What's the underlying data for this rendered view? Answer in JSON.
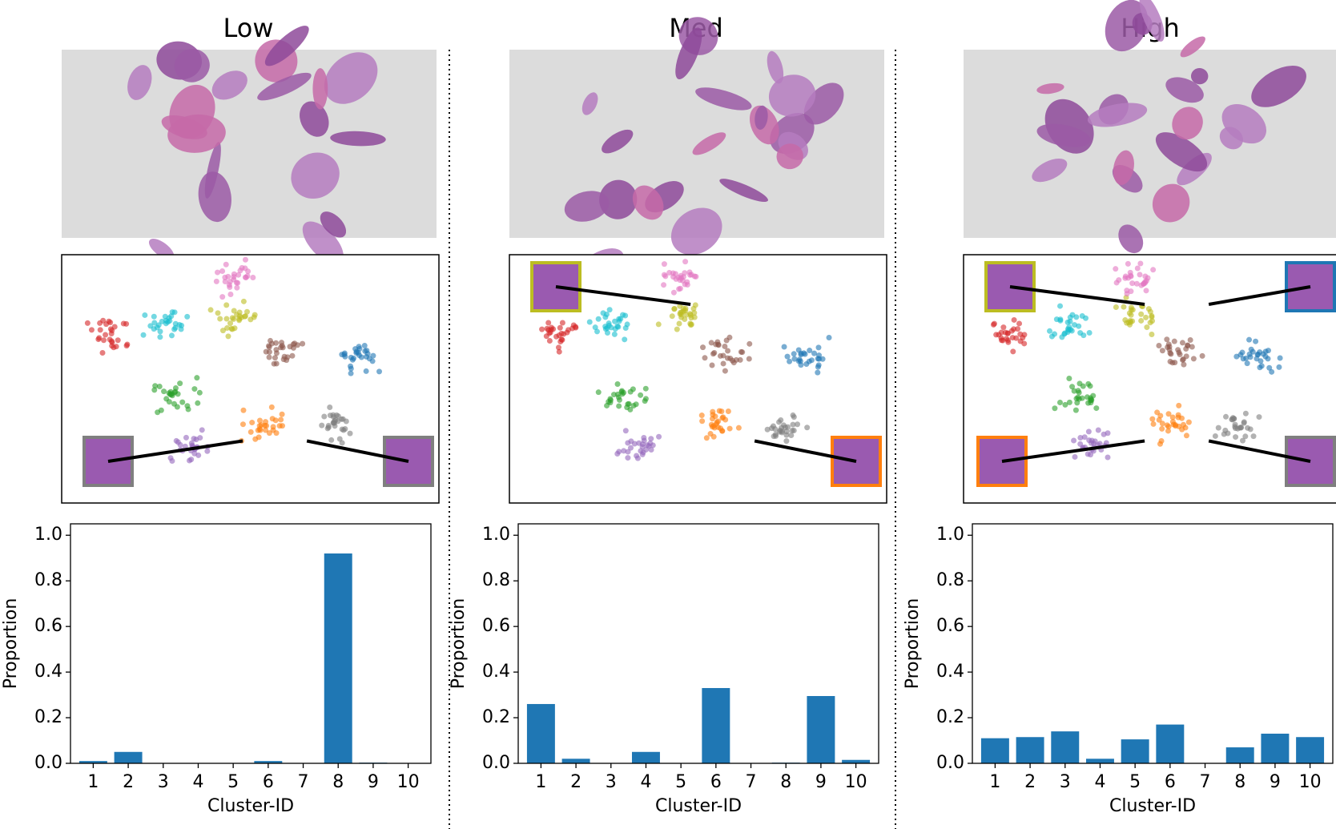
{
  "chart_data": [
    {
      "type": "bar",
      "title": "Low",
      "xlabel": "Cluster-ID",
      "ylabel": "Proportion",
      "categories": [
        "1",
        "2",
        "3",
        "4",
        "5",
        "6",
        "7",
        "8",
        "9",
        "10"
      ],
      "values": [
        0.01,
        0.05,
        0,
        0,
        0,
        0.01,
        0,
        0.92,
        0.003,
        0
      ],
      "color": "#1f77b4",
      "ylim": [
        0,
        1.05
      ],
      "yticks": [
        {
          "value": 0,
          "label": "0.0"
        },
        0.2,
        0.4,
        0.6,
        0.8,
        {
          "value": 1,
          "label": "1.0"
        }
      ]
    },
    {
      "type": "bar",
      "title": "Med",
      "xlabel": "Cluster-ID",
      "ylabel": "Proportion",
      "categories": [
        "1",
        "2",
        "3",
        "4",
        "5",
        "6",
        "7",
        "8",
        "9",
        "10"
      ],
      "values": [
        0.26,
        0.02,
        0,
        0.05,
        0,
        0.33,
        0,
        0.003,
        0.295,
        0.015
      ],
      "color": "#1f77b4",
      "ylim": [
        0,
        1.05
      ],
      "yticks": [
        {
          "value": 0,
          "label": "0.0"
        },
        0.2,
        0.4,
        0.6,
        0.8,
        {
          "value": 1,
          "label": "1.0"
        }
      ]
    },
    {
      "type": "bar",
      "title": "High",
      "xlabel": "Cluster-ID",
      "ylabel": "Proportion",
      "categories": [
        "1",
        "2",
        "3",
        "4",
        "5",
        "6",
        "7",
        "8",
        "9",
        "10"
      ],
      "values": [
        0.11,
        0.115,
        0.14,
        0.02,
        0.105,
        0.17,
        0,
        0.07,
        0.13,
        0.115
      ],
      "color": "#1f77b4",
      "ylim": [
        0,
        1.05
      ],
      "yticks": [
        {
          "value": 0,
          "label": "0.0"
        },
        0.2,
        0.4,
        0.6,
        0.8,
        {
          "value": 1,
          "label": "1.0"
        }
      ]
    }
  ]
}
